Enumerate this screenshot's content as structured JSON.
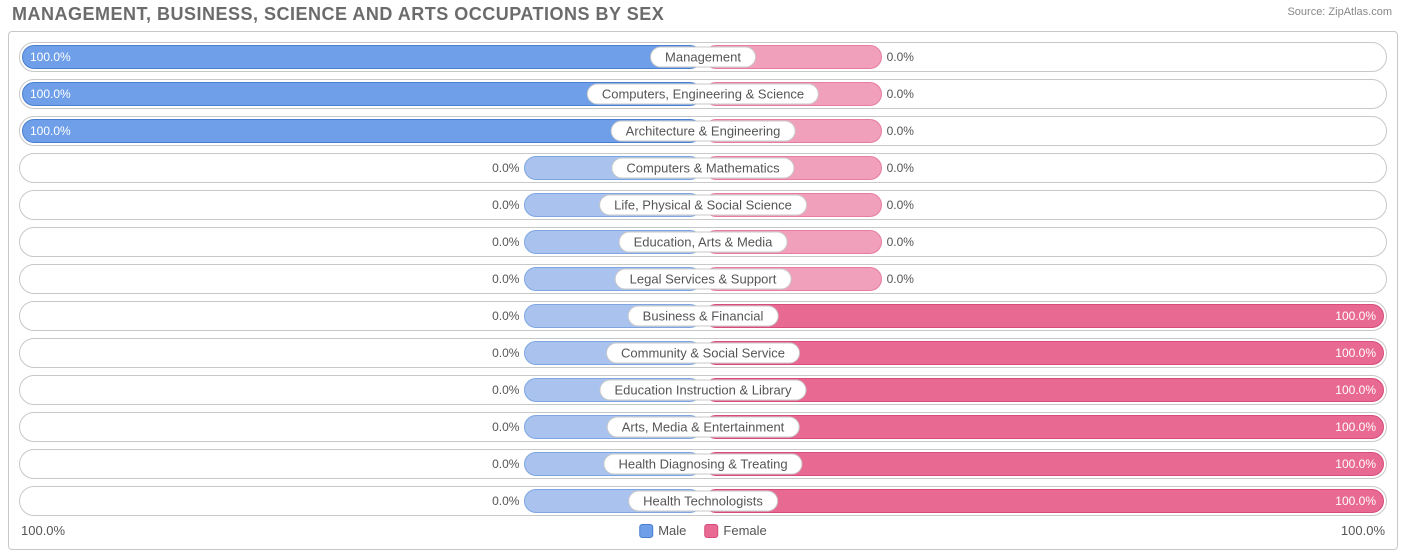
{
  "title": "MANAGEMENT, BUSINESS, SCIENCE AND ARTS OCCUPATIONS BY SEX",
  "source": "Source: ZipAtlas.com",
  "colors": {
    "male_fill": "#6f9fe8",
    "male_border": "#4a7fd0",
    "male_short_fill": "#a9c3ee",
    "male_short_border": "#7ea5e2",
    "female_fill": "#e86a93",
    "female_border": "#d84c7c",
    "female_short_fill": "#f1a0bb",
    "female_short_border": "#e77ca2",
    "title_color": "#6b6b6b",
    "text_color": "#555555",
    "border_color": "#c8c8c8",
    "background": "#ffffff"
  },
  "legend": {
    "male": "Male",
    "female": "Female"
  },
  "axis": {
    "left": "100.0%",
    "right": "100.0%"
  },
  "short_bar_percent": 26,
  "rows": [
    {
      "label": "Management",
      "male": 100.0,
      "female": 0.0
    },
    {
      "label": "Computers, Engineering & Science",
      "male": 100.0,
      "female": 0.0
    },
    {
      "label": "Architecture & Engineering",
      "male": 100.0,
      "female": 0.0
    },
    {
      "label": "Computers & Mathematics",
      "male": 0.0,
      "female": 0.0
    },
    {
      "label": "Life, Physical & Social Science",
      "male": 0.0,
      "female": 0.0
    },
    {
      "label": "Education, Arts & Media",
      "male": 0.0,
      "female": 0.0
    },
    {
      "label": "Legal Services & Support",
      "male": 0.0,
      "female": 0.0
    },
    {
      "label": "Business & Financial",
      "male": 0.0,
      "female": 100.0
    },
    {
      "label": "Community & Social Service",
      "male": 0.0,
      "female": 100.0
    },
    {
      "label": "Education Instruction & Library",
      "male": 0.0,
      "female": 100.0
    },
    {
      "label": "Arts, Media & Entertainment",
      "male": 0.0,
      "female": 100.0
    },
    {
      "label": "Health Diagnosing & Treating",
      "male": 0.0,
      "female": 100.0
    },
    {
      "label": "Health Technologists",
      "male": 0.0,
      "female": 100.0
    }
  ]
}
